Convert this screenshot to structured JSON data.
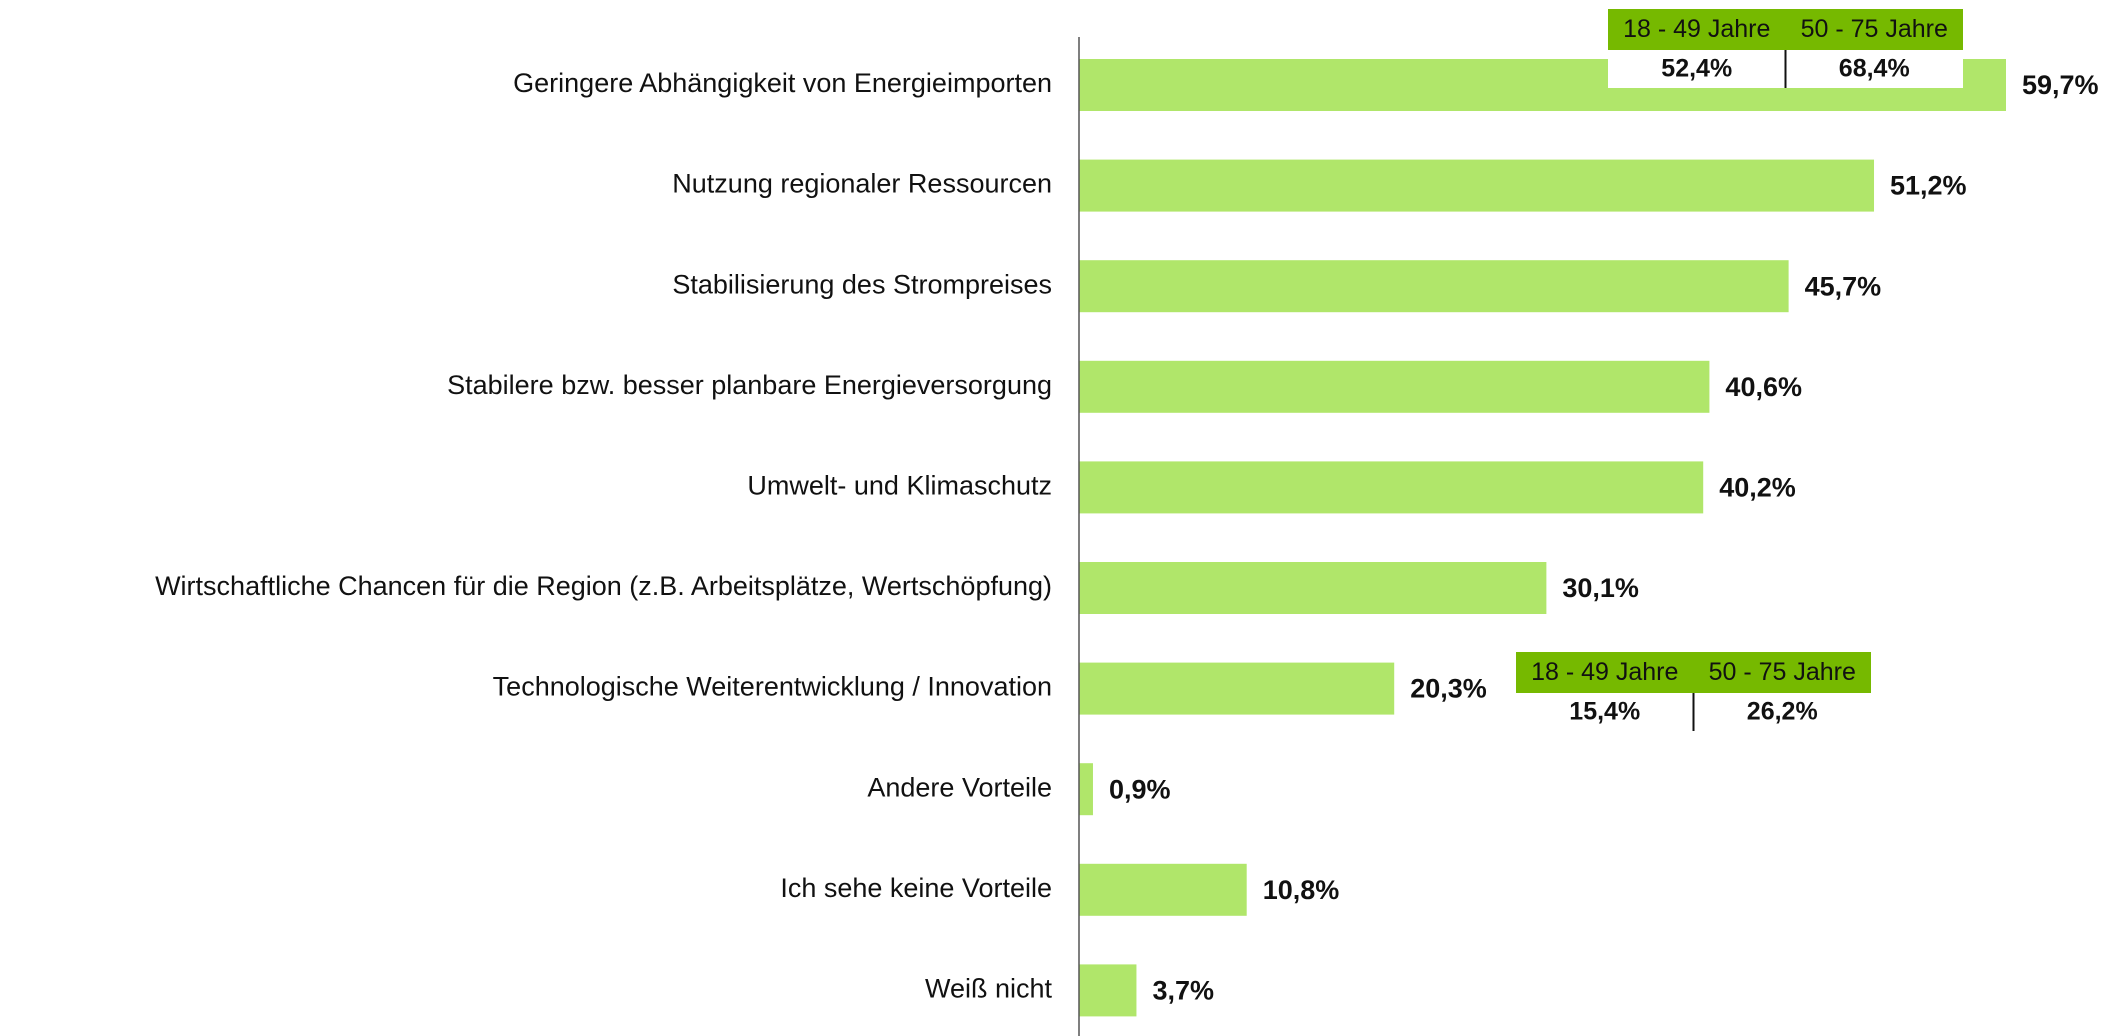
{
  "chart_data": {
    "type": "hbar",
    "categories": [
      "Geringere Abhängigkeit von Energieimporten",
      "Nutzung regionaler Ressourcen",
      "Stabilisierung des Strompreises",
      "Stabilere bzw. besser planbare Energieversorgung",
      "Umwelt- und Klimaschutz",
      "Wirtschaftliche Chancen für die Region (z.B. Arbeitsplätze, Wertschöpfung)",
      "Technologische Weiterentwicklung / Innovation",
      "Andere Vorteile",
      "Ich sehe keine Vorteile",
      "Weiß nicht"
    ],
    "values": [
      59.7,
      51.2,
      45.7,
      40.6,
      40.2,
      30.1,
      20.3,
      0.9,
      10.8,
      3.7
    ],
    "value_labels": [
      "59,7%",
      "51,2%",
      "45,7%",
      "40,6%",
      "40,2%",
      "30,1%",
      "20,3%",
      "0,9%",
      "10,8%",
      "3,7%"
    ],
    "color": "#b0e66a",
    "annotations": [
      {
        "labels": [
          "18 - 49 Jahre",
          "50 - 75 Jahre"
        ],
        "values": [
          52.4,
          68.4
        ],
        "value_labels": [
          "52,4%",
          "68,4%"
        ],
        "color": "#76b900"
      },
      {
        "labels": [
          "18 - 49 Jahre",
          "50 - 75 Jahre"
        ],
        "values": [
          15.4,
          26.2
        ],
        "value_labels": [
          "15,4%",
          "26,2%"
        ],
        "color": "#76b900"
      }
    ]
  }
}
